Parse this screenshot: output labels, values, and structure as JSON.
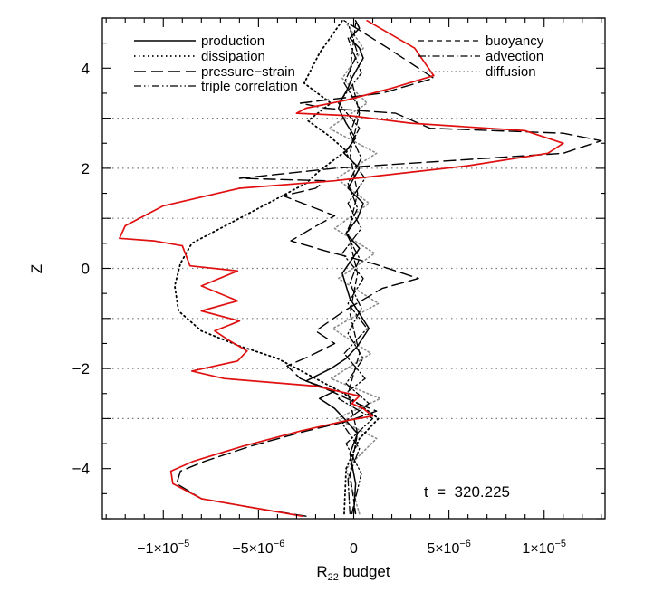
{
  "chart_data": {
    "type": "line",
    "xlabel_main": "R",
    "xlabel_sub": "22",
    "xlabel_rest": " budget",
    "ylabel": "Z",
    "xlim": [
      -1.32e-05,
      1.32e-05
    ],
    "ylim": [
      -5,
      5
    ],
    "x_tick_labels": [
      {
        "value": -1e-05,
        "mant": "−1×10",
        "exp": "−5"
      },
      {
        "value": -5e-06,
        "mant": "−5×10",
        "exp": "−6"
      },
      {
        "value": 0,
        "mant": "0",
        "exp": ""
      },
      {
        "value": 5e-06,
        "mant": "5×10",
        "exp": "−6"
      },
      {
        "value": 1e-05,
        "mant": "1×10",
        "exp": "−5"
      }
    ],
    "y_tick_labels": [
      {
        "value": -4,
        "label": "−4"
      },
      {
        "value": -2,
        "label": "−2"
      },
      {
        "value": 0,
        "label": "0"
      },
      {
        "value": 2,
        "label": "2"
      },
      {
        "value": 4,
        "label": "4"
      }
    ],
    "grid_z": [
      -3,
      -2,
      -1,
      0,
      1,
      2,
      3
    ],
    "annotation": "t  =  320.225",
    "legend": {
      "left": [
        {
          "name": "production",
          "style": "solid"
        },
        {
          "name": "dissipation",
          "style": "dotted"
        },
        {
          "name": "pressure−strain",
          "style": "longdash"
        },
        {
          "name": "triple correlation",
          "style": "dashdotdot"
        }
      ],
      "right": [
        {
          "name": "buoyancy",
          "style": "dashed"
        },
        {
          "name": "advection",
          "style": "dashdot"
        },
        {
          "name": "diffusion",
          "style": "dotted-gray"
        }
      ]
    },
    "series": [
      {
        "style": "sum-red",
        "color": "#e01010",
        "x": [
          -2.7e-06,
          -5e-06,
          -8e-06,
          -9.5e-06,
          -9.6e-06,
          -8.4e-06,
          -5.8e-06,
          -2.8e-06,
          -5e-07,
          1e-06,
          5e-07,
          -1e-07,
          3e-07,
          -2e-06,
          -6.8e-06,
          -8.5e-06,
          -6.1e-06,
          -5.6e-06,
          -6.5e-06,
          -7.3e-06,
          -6e-06,
          -8e-06,
          -6.1e-06,
          -8e-06,
          -6.1e-06,
          -8.6e-06,
          -9e-06,
          -1.05e-05,
          -1.23e-05,
          -1.2e-05,
          -1.1e-05,
          -1e-05,
          -6e-06,
          -1e-06,
          6e-06,
          1.02e-05,
          1.1e-05,
          9e-06,
          3e-06,
          -2e-07,
          -3e-06,
          -2.5e-06,
          -5e-07,
          2e-06,
          4.2e-06,
          3.2e-06,
          7e-07
        ],
        "z": [
          -4.95,
          -4.8,
          -4.6,
          -4.3,
          -4.05,
          -3.85,
          -3.55,
          -3.25,
          -3.05,
          -2.95,
          -2.8,
          -2.7,
          -2.55,
          -2.35,
          -2.2,
          -2.05,
          -1.85,
          -1.65,
          -1.45,
          -1.25,
          -1.05,
          -0.85,
          -0.65,
          -0.35,
          -0.05,
          0.05,
          0.45,
          0.55,
          0.6,
          0.85,
          1.05,
          1.25,
          1.6,
          1.75,
          2.05,
          2.3,
          2.5,
          2.75,
          2.9,
          3.05,
          3.1,
          3.2,
          3.35,
          3.6,
          3.85,
          4.4,
          4.95
        ]
      },
      {
        "style": "longdash",
        "color": "#000000",
        "x": [
          -2.5e-06,
          -5e-06,
          -8e-06,
          -9.3e-06,
          -9.1e-06,
          -7.8e-06,
          -5.4e-06,
          -2.5e-06,
          -3e-07,
          1.2e-06,
          2e-07,
          -1.2e-06,
          -2.8e-06,
          -3.5e-06,
          -2.3e-06,
          -1e-06,
          -2e-06,
          -5e-07,
          1.5e-06,
          3.4e-06,
          1e-06,
          -1.5e-06,
          -3.3e-06,
          -2.2e-06,
          -1e-06,
          -2e-06,
          -3.7e-06,
          -2e-06,
          -1.5e-06,
          -6e-06,
          -1e-06,
          5e-06,
          1.1e-05,
          1.3e-05,
          1.1e-05,
          4e-06,
          2.2e-06,
          -1.5e-06,
          -2.8e-06,
          1.5e-06,
          4.2e-06,
          1.8e-06,
          -5e-07
        ],
        "z": [
          -4.95,
          -4.8,
          -4.6,
          -4.3,
          -4.05,
          -3.85,
          -3.55,
          -3.25,
          -3.05,
          -2.85,
          -2.7,
          -2.45,
          -2.2,
          -1.95,
          -1.75,
          -1.5,
          -1.25,
          -0.85,
          -0.4,
          -0.2,
          0.1,
          0.35,
          0.55,
          0.8,
          1.05,
          1.2,
          1.45,
          1.6,
          1.75,
          1.8,
          2.0,
          2.15,
          2.3,
          2.55,
          2.7,
          2.8,
          3.1,
          3.2,
          3.3,
          3.5,
          3.8,
          4.4,
          4.95
        ]
      },
      {
        "style": "dotted",
        "color": "#000000",
        "x": [
          -5e-07,
          -4e-07,
          3e-07,
          1.3e-06,
          -5e-07,
          -2.5e-06,
          -4e-06,
          -6e-06,
          -8e-06,
          -9.2e-06,
          -9.4e-06,
          -9.1e-06,
          -8.5e-06,
          -6.5e-06,
          -4.5e-06,
          -2.5e-06,
          -1.8e-06,
          -1.1e-06,
          -4e-07,
          -1.3e-06,
          -2.4e-06,
          -1.2e-06,
          -2.6e-06,
          -1.8e-06,
          -6e-07
        ],
        "z": [
          -4.9,
          -4,
          -3.4,
          -3.0,
          -2.5,
          -2.1,
          -1.8,
          -1.55,
          -1.25,
          -0.85,
          -0.35,
          0.1,
          0.5,
          0.9,
          1.3,
          1.7,
          1.95,
          2.15,
          2.35,
          2.65,
          2.95,
          3.3,
          3.7,
          4.3,
          4.95
        ]
      },
      {
        "style": "solid",
        "color": "#000000",
        "x": [
          0,
          1e-07,
          -2e-07,
          2e-07,
          -5e-07,
          -1e-06,
          -1.8e-06,
          -1e-06,
          -2.5e-06,
          -1.2e-06,
          -4e-07,
          2e-07,
          8e-07,
          3e-07,
          -2e-07,
          -6e-07,
          3e-07,
          -4e-07,
          2e-07,
          5e-07,
          -3e-07,
          3e-07,
          -5e-07,
          1e-07,
          -4e-07,
          -8e-07,
          -6e-07,
          -3e-07,
          -1e-07,
          2e-07,
          5e-07,
          3e-07,
          -2e-07,
          3e-07,
          1e-07
        ],
        "z": [
          -4.9,
          -4.3,
          -3.7,
          -3.3,
          -3.0,
          -2.8,
          -2.6,
          -2.45,
          -2.25,
          -2.0,
          -1.8,
          -1.55,
          -1.2,
          -0.9,
          -0.6,
          -0.1,
          0.4,
          0.7,
          1.0,
          1.3,
          1.6,
          2.0,
          2.3,
          2.6,
          2.9,
          3.2,
          3.4,
          3.6,
          3.8,
          4.0,
          4.2,
          4.4,
          4.6,
          4.8,
          4.95
        ]
      },
      {
        "style": "dashdot",
        "color": "#000000",
        "x": [
          -2e-07,
          -3e-07,
          3e-07,
          -6e-07,
          8e-07,
          -4e-07,
          5e-07,
          -3e-07,
          4e-07,
          -2e-07,
          3e-07,
          -4e-07,
          2e-07,
          -3e-07,
          4e-07,
          -2e-07,
          3e-07,
          -5e-07,
          2e-07,
          -3e-07
        ],
        "z": [
          -4.9,
          -4.2,
          -3.6,
          -3.1,
          -2.7,
          -2.3,
          -1.8,
          -1.3,
          -0.8,
          -0.3,
          0.2,
          0.7,
          1.2,
          1.7,
          2.2,
          2.7,
          3.2,
          3.7,
          4.3,
          4.9
        ]
      },
      {
        "style": "dashdotdot",
        "color": "#000000",
        "x": [
          -1e-07,
          4e-07,
          -4e-07,
          1e-06,
          -8e-07,
          6e-07,
          -5e-07,
          7e-07,
          -3e-07,
          5e-07,
          -6e-07,
          4e-07,
          -3e-07,
          6e-07,
          -4e-07,
          3e-07,
          -8e-07,
          4e-07,
          -3e-07
        ],
        "z": [
          -4.9,
          -4.1,
          -3.5,
          -3.0,
          -2.6,
          -2.2,
          -1.7,
          -1.2,
          -0.7,
          -0.2,
          0.3,
          0.8,
          1.3,
          1.8,
          2.3,
          2.8,
          3.3,
          3.9,
          4.6
        ]
      },
      {
        "style": "dotted-gray",
        "color": "#8a8a8a",
        "x": [
          3e-07,
          -4e-07,
          1.2e-06,
          -9e-07,
          1.4e-06,
          -1.2e-06,
          9e-07,
          -1.1e-06,
          1.3e-06,
          -8e-07,
          1.1e-06,
          -1e-06,
          8e-07,
          -9e-07,
          1.2e-06,
          -1.3e-06,
          7e-07,
          -6e-07,
          5e-07,
          -4e-07
        ],
        "z": [
          -4.9,
          -4.0,
          -3.4,
          -3.0,
          -2.6,
          -2.2,
          -1.7,
          -1.2,
          -0.7,
          -0.2,
          0.3,
          0.8,
          1.3,
          1.8,
          2.3,
          2.8,
          3.3,
          3.8,
          4.4,
          4.9
        ]
      },
      {
        "style": "dashed",
        "color": "#000000",
        "x": [
          1e-07,
          -2e-07,
          2e-07,
          -3e-07,
          3e-07,
          -2e-07,
          2e-07,
          -3e-07,
          2e-07,
          -2e-07,
          3e-07,
          -2e-07,
          1e-07
        ],
        "z": [
          -4.9,
          -4.1,
          -3.3,
          -2.5,
          -1.7,
          -0.9,
          -0.1,
          0.7,
          1.5,
          2.3,
          3.1,
          3.9,
          4.9
        ]
      }
    ]
  }
}
